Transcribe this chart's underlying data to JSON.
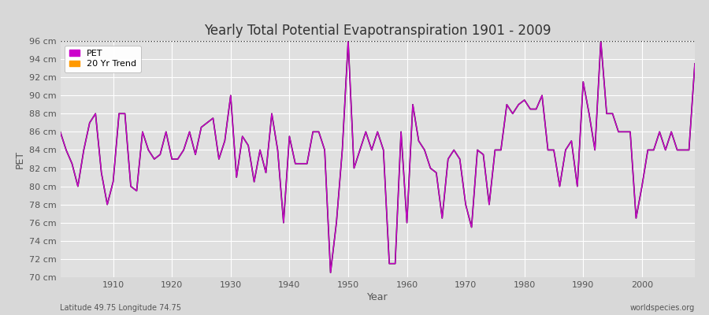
{
  "title": "Yearly Total Potential Evapotranspiration 1901 - 2009",
  "xlabel": "Year",
  "ylabel": "PET",
  "xlim": [
    1901,
    2009
  ],
  "ylim": [
    70,
    96
  ],
  "yticks": [
    70,
    72,
    74,
    76,
    78,
    80,
    82,
    84,
    86,
    88,
    90,
    92,
    94,
    96
  ],
  "ytick_labels": [
    "70 cm",
    "72 cm",
    "74 cm",
    "76 cm",
    "78 cm",
    "80 cm",
    "82 cm",
    "84 cm",
    "86 cm",
    "88 cm",
    "90 cm",
    "92 cm",
    "94 cm",
    "96 cm"
  ],
  "xticks": [
    1910,
    1920,
    1930,
    1940,
    1950,
    1960,
    1970,
    1980,
    1990,
    2000
  ],
  "pet_color": "#cc00cc",
  "trend_color": "#ff9900",
  "dark_line_color": "#222222",
  "background_color": "#d8d8d8",
  "plot_bg_color": "#e0e0e0",
  "grid_color": "#ffffff",
  "dotted_line_color": "#333333",
  "legend_labels": [
    "PET",
    "20 Yr Trend"
  ],
  "footer_left": "Latitude 49.75 Longitude 74.75",
  "footer_right": "worldspecies.org",
  "years": [
    1901,
    1902,
    1903,
    1904,
    1905,
    1906,
    1907,
    1908,
    1909,
    1910,
    1911,
    1912,
    1913,
    1914,
    1915,
    1916,
    1917,
    1918,
    1919,
    1920,
    1921,
    1922,
    1923,
    1924,
    1925,
    1926,
    1927,
    1928,
    1929,
    1930,
    1931,
    1932,
    1933,
    1934,
    1935,
    1936,
    1937,
    1938,
    1939,
    1940,
    1941,
    1942,
    1943,
    1944,
    1945,
    1946,
    1947,
    1948,
    1949,
    1950,
    1951,
    1952,
    1953,
    1954,
    1955,
    1956,
    1957,
    1958,
    1959,
    1960,
    1961,
    1962,
    1963,
    1964,
    1965,
    1966,
    1967,
    1968,
    1969,
    1970,
    1971,
    1972,
    1973,
    1974,
    1975,
    1976,
    1977,
    1978,
    1979,
    1980,
    1981,
    1982,
    1983,
    1984,
    1985,
    1986,
    1987,
    1988,
    1989,
    1990,
    1991,
    1992,
    1993,
    1994,
    1995,
    1996,
    1997,
    1998,
    1999,
    2000,
    2001,
    2002,
    2003,
    2004,
    2005,
    2006,
    2007,
    2008,
    2009
  ],
  "pet": [
    86.0,
    84.0,
    82.5,
    80.0,
    84.0,
    87.0,
    88.0,
    81.5,
    78.0,
    80.5,
    88.0,
    88.0,
    80.0,
    79.5,
    86.0,
    84.0,
    83.0,
    83.5,
    86.0,
    83.0,
    83.0,
    84.0,
    86.0,
    83.5,
    86.5,
    87.0,
    87.5,
    83.0,
    85.0,
    90.0,
    81.0,
    85.5,
    84.5,
    80.5,
    84.0,
    81.5,
    88.0,
    84.0,
    76.0,
    85.5,
    82.5,
    82.5,
    82.5,
    86.0,
    86.0,
    84.0,
    70.5,
    76.0,
    84.0,
    96.0,
    82.0,
    84.0,
    86.0,
    84.0,
    86.0,
    84.0,
    71.5,
    71.5,
    86.0,
    76.0,
    89.0,
    85.0,
    84.0,
    82.0,
    81.5,
    76.5,
    83.0,
    84.0,
    83.0,
    78.0,
    75.5,
    84.0,
    83.5,
    78.0,
    84.0,
    84.0,
    89.0,
    88.0,
    89.0,
    89.5,
    88.5,
    88.5,
    90.0,
    84.0,
    84.0,
    80.0,
    84.0,
    85.0,
    80.0,
    91.5,
    88.0,
    84.0,
    96.0,
    88.0,
    88.0,
    86.0,
    86.0,
    86.0,
    76.5,
    80.0,
    84.0,
    84.0,
    86.0,
    84.0,
    86.0,
    84.0,
    84.0,
    84.0,
    93.5
  ]
}
